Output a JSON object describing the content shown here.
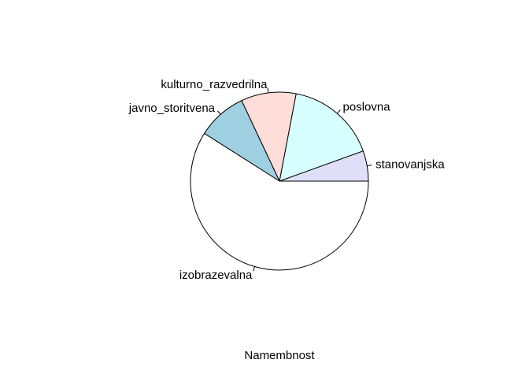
{
  "chart_data": {
    "type": "pie",
    "title": "",
    "xlabel": "Namembnost",
    "ylabel": "",
    "direction": "counterclockwise",
    "start_angle_deg": 0,
    "slices": [
      {
        "label": "stanovanjska",
        "value": 5.5,
        "color": "#dfdff7"
      },
      {
        "label": "poslovna",
        "value": 16.5,
        "color": "#d8ffff"
      },
      {
        "label": "kulturno_razvedrilna",
        "value": 10.0,
        "color": "#ffddd9"
      },
      {
        "label": "javno_storitvena",
        "value": 9.0,
        "color": "#9fd0e1"
      },
      {
        "label": "izobrazevalna",
        "value": 59.0,
        "color": "#ffffff"
      }
    ]
  }
}
